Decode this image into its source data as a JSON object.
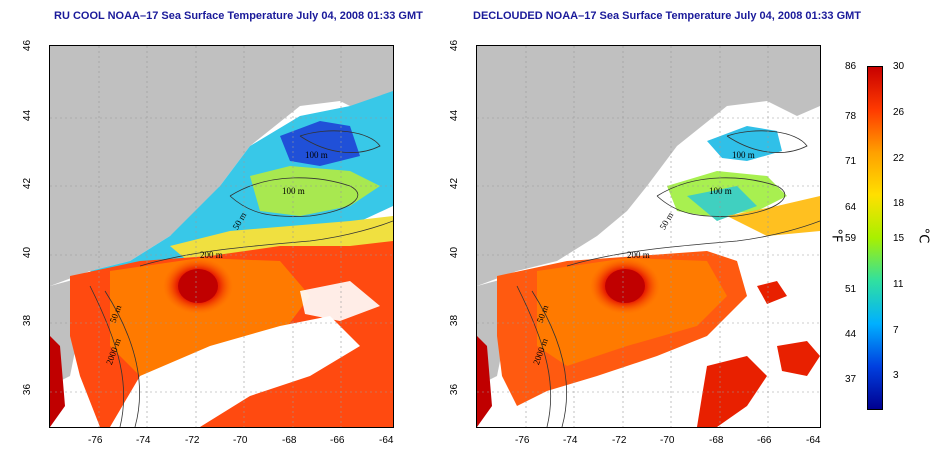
{
  "panels": [
    {
      "id": "left",
      "title": "RU COOL NOAA–17 Sea Surface Temperature July 04, 2008 01:33 GMT"
    },
    {
      "id": "right",
      "title": "DECLOUDED NOAA–17 Sea Surface Temperature July 04, 2008 01:33 GMT"
    }
  ],
  "axes": {
    "x_ticks": [
      "-76",
      "-74",
      "-72",
      "-70",
      "-68",
      "-66",
      "-64"
    ],
    "y_ticks": [
      "46",
      "44",
      "42",
      "40",
      "38",
      "36"
    ]
  },
  "contour_labels": [
    "100 m",
    "100 m",
    "50 m",
    "200 m",
    "50 m",
    "2000 m"
  ],
  "colorbar": {
    "fahrenheit_ticks": [
      "86",
      "78",
      "71",
      "64",
      "59",
      "51",
      "44",
      "37"
    ],
    "celsius_ticks": [
      "30",
      "26",
      "22",
      "18",
      "15",
      "11",
      "7",
      "3"
    ],
    "f_label": "°F",
    "c_label": "°C",
    "colors": [
      "#c80000",
      "#ff3a00",
      "#ffa000",
      "#ffe000",
      "#a8f000",
      "#30e0a0",
      "#00b0ff",
      "#0040e0",
      "#000090"
    ]
  },
  "colors": {
    "land": "#c0c0c0",
    "cloud": "#ffffff",
    "title": "#1a1a9a",
    "grid": "#9a9a9a"
  }
}
